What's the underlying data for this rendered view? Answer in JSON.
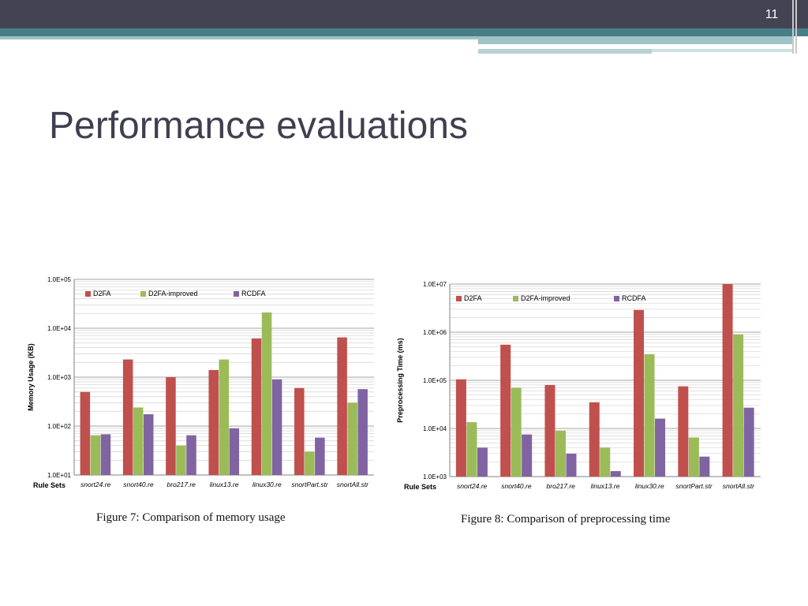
{
  "slide": {
    "page_number": "11",
    "title": "Performance evaluations"
  },
  "colors": {
    "D2FA": "#c0504d",
    "D2FA-improved": "#9bbb59",
    "RCDFA": "#8064a2"
  },
  "chart_data": [
    {
      "type": "bar",
      "scale": "log",
      "ylabel": "Memory Usage (KB)",
      "xlabel": "Rule Sets",
      "categories": [
        "snort24.re",
        "snort40.re",
        "bro217.re",
        "linux13.re",
        "linux30.re",
        "snortPart.str",
        "snortAll.str"
      ],
      "yticks": [
        "1.0E+01",
        "1.0E+02",
        "1.0E+03",
        "1.0E+04",
        "1.0E+05"
      ],
      "ylim": [
        10,
        100000
      ],
      "legend_position": "top",
      "grid": true,
      "series": [
        {
          "name": "D2FA",
          "values": [
            500,
            2300,
            1000,
            1400,
            6200,
            600,
            6500
          ]
        },
        {
          "name": "D2FA-improved",
          "values": [
            65,
            240,
            40,
            2300,
            21000,
            30,
            300
          ]
        },
        {
          "name": "RCDFA",
          "values": [
            68,
            175,
            65,
            90,
            900,
            58,
            570
          ]
        }
      ],
      "caption": "Figure 7: Comparison of memory usage"
    },
    {
      "type": "bar",
      "scale": "log",
      "ylabel": "Preprocessing Time (ms)",
      "xlabel": "Rule Sets",
      "categories": [
        "snort24.re",
        "snort40.re",
        "bro217.re",
        "linux13.re",
        "linux30.re",
        "snortPart.str",
        "snortAll.str"
      ],
      "yticks": [
        "1.0E+03",
        "1.0E+04",
        "1.0E+05",
        "1.0E+06",
        "1.0E+07"
      ],
      "ylim": [
        1000,
        10000000
      ],
      "legend_position": "top",
      "grid": true,
      "series": [
        {
          "name": "D2FA",
          "values": [
            105000,
            550000,
            80000,
            35000,
            2900000,
            75000,
            10000000
          ]
        },
        {
          "name": "D2FA-improved",
          "values": [
            13500,
            70000,
            9000,
            4000,
            350000,
            6500,
            900000
          ]
        },
        {
          "name": "RCDFA",
          "values": [
            4000,
            7500,
            3000,
            1300,
            16000,
            2600,
            27000
          ]
        }
      ],
      "caption": "Figure 8: Comparison of preprocessing time"
    }
  ]
}
